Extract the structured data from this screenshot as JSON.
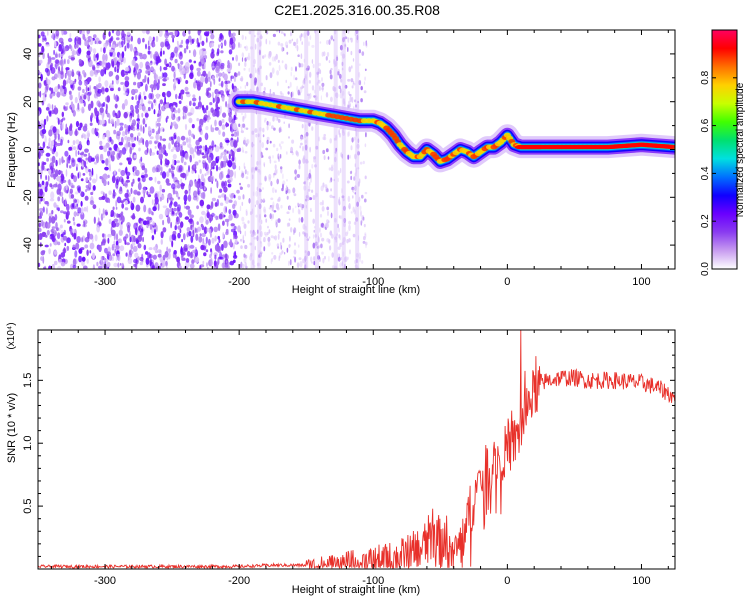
{
  "title": "C2E1.2025.316.00.35.R08",
  "chart_data": [
    {
      "type": "heatmap",
      "xlabel": "Height of straight line (km)",
      "ylabel": "Frequency (Hz)",
      "xlim": [
        -350,
        125
      ],
      "ylim": [
        -50,
        50
      ],
      "xticks": [
        -300,
        -200,
        -100,
        0,
        100
      ],
      "yticks": [
        -40,
        -20,
        0,
        20,
        40
      ],
      "colorbar": {
        "label": "Normalized spectral amplitude",
        "range": [
          0.0,
          1.0
        ],
        "ticks": [
          "0.0",
          "0.2",
          "0.4",
          "0.6",
          "0.8"
        ],
        "colormap": [
          "#ffffff",
          "#c89cf0",
          "#8a3cf0",
          "#6a00ff",
          "#1000ff",
          "#0070ff",
          "#00e0e0",
          "#00e070",
          "#40ff00",
          "#c8ff00",
          "#ffd000",
          "#ff7000",
          "#ff0000",
          "#ff0060"
        ]
      },
      "ridge_track": {
        "description": "dominant frequency vs height",
        "x": [
          -200,
          -190,
          -180,
          -170,
          -160,
          -150,
          -140,
          -130,
          -120,
          -110,
          -100,
          -95,
          -90,
          -85,
          -80,
          -75,
          -70,
          -65,
          -60,
          -55,
          -50,
          -45,
          -40,
          -35,
          -30,
          -25,
          -20,
          -15,
          -10,
          -5,
          0,
          5,
          10,
          25,
          50,
          75,
          100,
          125
        ],
        "y": [
          20,
          20,
          19,
          18,
          17,
          16,
          15,
          14,
          13,
          12,
          12,
          11,
          9,
          6,
          2,
          -1,
          -3,
          -3,
          0,
          -2,
          -5,
          -4,
          -2,
          0,
          -1,
          -3,
          -1,
          1,
          1,
          3,
          6,
          2,
          1,
          1,
          1,
          1,
          2,
          1
        ]
      }
    },
    {
      "type": "line",
      "xlabel": "Height of straight line (km)",
      "ylabel": "SNR (10 * v/v)",
      "multiplier": "(x10⁴)",
      "xlim": [
        -350,
        125
      ],
      "ylim": [
        0,
        1.9
      ],
      "xticks": [
        -300,
        -200,
        -100,
        0,
        100
      ],
      "yticks": [
        0.5,
        1.0,
        1.5
      ],
      "ytick_labels": [
        "0.5",
        "1.0",
        "1.5"
      ],
      "series": [
        {
          "name": "SNR",
          "color": "#e8302a",
          "x": [
            -350,
            -300,
            -250,
            -200,
            -175,
            -150,
            -125,
            -100,
            -90,
            -80,
            -70,
            -60,
            -55,
            -50,
            -45,
            -40,
            -35,
            -30,
            -25,
            -20,
            -15,
            -10,
            -5,
            0,
            5,
            10,
            15,
            20,
            25,
            30,
            40,
            50,
            60,
            70,
            80,
            90,
            100,
            110,
            120,
            125
          ],
          "y": [
            0.02,
            0.02,
            0.02,
            0.02,
            0.03,
            0.03,
            0.04,
            0.05,
            0.06,
            0.08,
            0.12,
            0.2,
            0.3,
            0.2,
            0.15,
            0.12,
            0.2,
            0.4,
            0.55,
            0.7,
            0.8,
            0.85,
            0.9,
            0.95,
            1.0,
            1.1,
            1.3,
            1.4,
            1.48,
            1.5,
            1.52,
            1.52,
            1.5,
            1.5,
            1.5,
            1.49,
            1.48,
            1.45,
            1.4,
            1.35
          ]
        }
      ],
      "peak_annotation": {
        "x": 10,
        "y": 1.9
      }
    }
  ]
}
